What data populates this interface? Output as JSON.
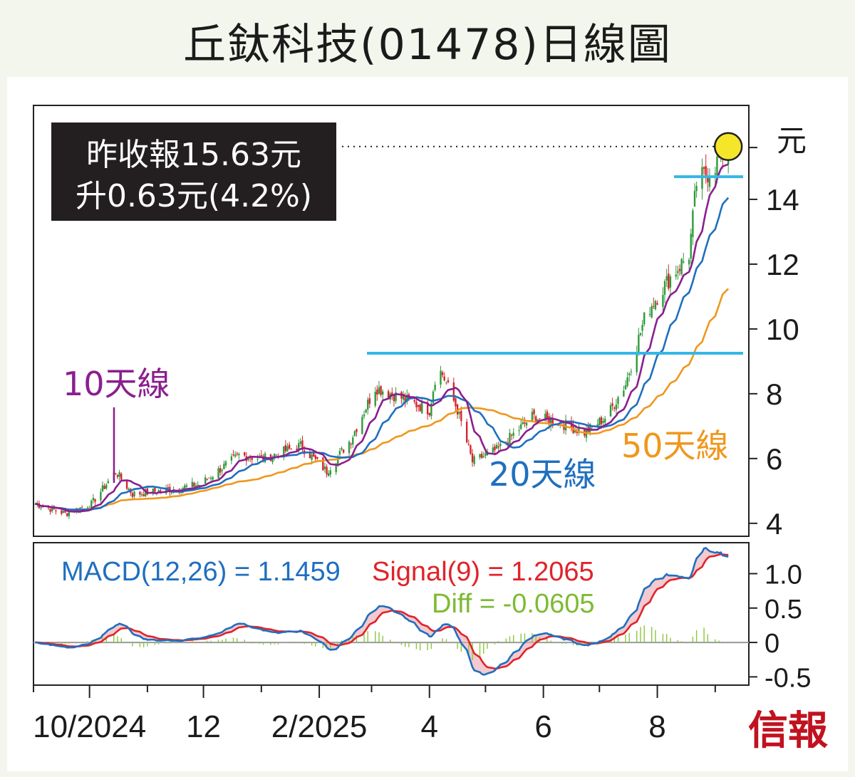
{
  "title": "丘鈦科技(01478)日線圖",
  "brand": "信報",
  "colors": {
    "ma10": "#8a1f8f",
    "ma20": "#1f6fbf",
    "ma50": "#f0971d",
    "resistance": "#34b7e6",
    "candle_up": "#2f9a3a",
    "candle_down": "#d6252c",
    "macd_line": "#1f6fbf",
    "signal_line": "#e0232a",
    "diff_bars": "#8cc63f",
    "brand": "#c1121f",
    "marker": "#f5e62a"
  },
  "chart_data": [
    {
      "type": "candlestick",
      "unit_label": "元",
      "ylim": [
        3.6,
        16.9
      ],
      "y_ticks": [
        4,
        6,
        8,
        10,
        12,
        14
      ],
      "x_tick_labels": [
        "10/2024",
        "12",
        "2/2025",
        "4",
        "6",
        "8"
      ],
      "info_box": {
        "line1": "昨收報15.63元",
        "line2": "升0.63元(4.2%)"
      },
      "last_close": 15.63,
      "change": 0.63,
      "change_pct": 4.2,
      "resistance_levels": [
        9.25,
        14.7
      ],
      "series_labels": {
        "ma10": "10天線",
        "ma20": "20天線",
        "ma50": "50天線"
      },
      "price_path": [
        [
          "2024-09-02",
          4.6
        ],
        [
          "2024-09-18",
          4.3
        ],
        [
          "2024-10-02",
          4.6
        ],
        [
          "2024-10-15",
          5.6
        ],
        [
          "2024-10-24",
          4.9
        ],
        [
          "2024-11-08",
          5.0
        ],
        [
          "2024-11-29",
          5.2
        ],
        [
          "2024-12-20",
          6.1
        ],
        [
          "2025-01-02",
          6.0
        ],
        [
          "2025-01-22",
          6.4
        ],
        [
          "2025-02-05",
          5.6
        ],
        [
          "2025-02-18",
          6.6
        ],
        [
          "2025-03-03",
          8.2
        ],
        [
          "2025-03-20",
          7.8
        ],
        [
          "2025-04-01",
          7.5
        ],
        [
          "2025-04-05",
          8.8
        ],
        [
          "2025-04-08",
          8.6
        ],
        [
          "2025-04-16",
          7.5
        ],
        [
          "2025-04-24",
          5.9
        ],
        [
          "2025-05-08",
          6.3
        ],
        [
          "2025-05-26",
          7.3
        ],
        [
          "2025-06-10",
          7.1
        ],
        [
          "2025-06-23",
          6.8
        ],
        [
          "2025-07-05",
          7.3
        ],
        [
          "2025-07-15",
          8.3
        ],
        [
          "2025-07-26",
          10.5
        ],
        [
          "2025-08-08",
          11.6
        ],
        [
          "2025-08-18",
          12.3
        ],
        [
          "2025-08-22",
          14.5
        ],
        [
          "2025-08-31",
          15.0
        ],
        [
          "2025-09-08",
          15.63
        ]
      ]
    },
    {
      "type": "line",
      "ylim": [
        -0.62,
        1.45
      ],
      "y_ticks": [
        -0.5,
        0,
        0.5,
        1.0
      ],
      "y_tick_labels": [
        "-0.5",
        "0",
        "0.5",
        "1.0"
      ],
      "macd_label": "MACD(12,26) = 1.1459",
      "signal_label": "Signal(9) = 1.2065",
      "diff_label": "Diff = -0.0605",
      "macd": 1.1459,
      "signal": 1.2065,
      "diff": -0.0605
    }
  ]
}
